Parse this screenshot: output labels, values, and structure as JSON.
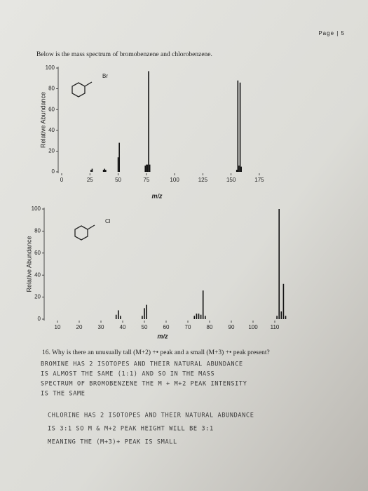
{
  "page_label": "Page | 5",
  "intro": "Below is the mass spectrum of bromobenzene and chlorobenzene.",
  "chart_data": [
    {
      "type": "bar",
      "annotation": "Br",
      "y_label": "Relative Abundance",
      "x_label": "m/z",
      "x": [
        26,
        27,
        37,
        38,
        39,
        50,
        51,
        74,
        75,
        76,
        77,
        78,
        155,
        156,
        157,
        158,
        159
      ],
      "values": [
        2,
        3,
        2,
        3,
        2,
        14,
        28,
        6,
        7,
        7,
        97,
        7,
        2,
        88,
        6,
        86,
        5
      ],
      "color": "#111111",
      "xlim": [
        0,
        180
      ],
      "xticks": [
        0,
        25,
        50,
        75,
        100,
        125,
        150,
        175
      ],
      "ylim": [
        0,
        100
      ],
      "yticks": [
        0,
        20,
        40,
        60,
        80,
        100
      ]
    },
    {
      "type": "bar",
      "annotation": "Cl",
      "y_label": "Relative Abundance",
      "x_label": "m/z",
      "x": [
        37,
        38,
        39,
        49,
        50,
        51,
        73,
        74,
        75,
        76,
        77,
        78,
        111,
        112,
        113,
        114,
        115
      ],
      "values": [
        4,
        8,
        3,
        3,
        10,
        13,
        3,
        5,
        5,
        4,
        26,
        3,
        3,
        100,
        7,
        32,
        3
      ],
      "color": "#111111",
      "xlim": [
        5,
        115
      ],
      "xticks": [
        10,
        20,
        30,
        40,
        50,
        60,
        70,
        80,
        90,
        100,
        110
      ],
      "ylim": [
        0,
        100
      ],
      "yticks": [
        0,
        20,
        40,
        60,
        80,
        100
      ]
    }
  ],
  "question": "16. Why is there an unusually tall (M+2) +• peak and a small (M+3) +• peak present?",
  "answer_lines": [
    "BROMINE HAS 2 ISOTOPES AND THEIR NATURAL ABUNDANCE",
    "IS ALMOST THE SAME (1:1) AND SO IN THE MASS",
    "SPECTRUM OF BROMOBENZENE THE M + M+2 PEAK INTENSITY",
    "IS THE SAME",
    "CHLORINE HAS 2 ISOTOPES AND THEIR NATURAL ABUNDANCE",
    "IS 3:1   SO M & M+2 PEAK HEIGHT WILL BE 3:1",
    "MEANING THE (M+3)+ PEAK IS SMALL"
  ]
}
